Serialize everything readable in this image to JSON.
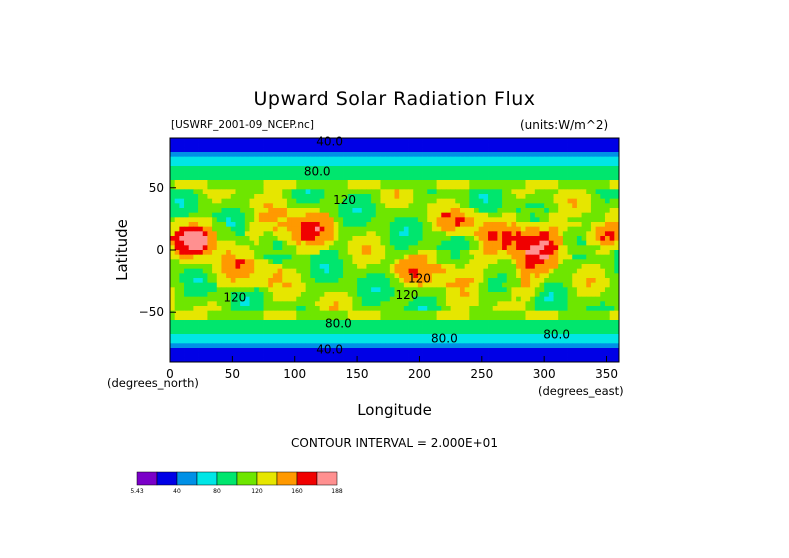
{
  "chart_data": {
    "type": "heatmap",
    "title": "Upward Solar Radiation Flux",
    "source_file": "[USWRF_2001-09_NCEP.nc]",
    "units": "(units:W/m^2)",
    "xlabel": "Longitude",
    "ylabel": "Latitude",
    "x_unit": "(degrees_east)",
    "y_unit": "(degrees_north)",
    "xlim": [
      0,
      360
    ],
    "ylim": [
      -90,
      90
    ],
    "x_ticks": [
      0,
      50,
      100,
      150,
      200,
      250,
      300,
      350
    ],
    "y_ticks": [
      -50,
      0,
      50
    ],
    "y_tick_labels": [
      "−50",
      "0",
      "50"
    ],
    "contour_interval": "CONTOUR INTERVAL = 2.000E+01",
    "contour_labels": [
      {
        "text": "40.0",
        "x": 128,
        "y": 87
      },
      {
        "text": "80.0",
        "x": 118,
        "y": 63
      },
      {
        "text": "120",
        "x": 140,
        "y": 40
      },
      {
        "text": "120",
        "x": 52,
        "y": -38
      },
      {
        "text": "120",
        "x": 200,
        "y": -23
      },
      {
        "text": "120",
        "x": 190,
        "y": -36
      },
      {
        "text": "80.0",
        "x": 135,
        "y": -59
      },
      {
        "text": "80.0",
        "x": 220,
        "y": -71
      },
      {
        "text": "80.0",
        "x": 310,
        "y": -68
      },
      {
        "text": "40.0",
        "x": 128,
        "y": -80
      }
    ],
    "colorbar": {
      "colors": [
        "#7a00c8",
        "#0000e6",
        "#0090e6",
        "#00e6e6",
        "#00e66e",
        "#6ee600",
        "#e6e600",
        "#ff9900",
        "#f00000",
        "#ff9090"
      ],
      "labels": [
        "5.43",
        "40",
        "80",
        "120",
        "160",
        "188"
      ],
      "label_positions": [
        0,
        2,
        4,
        6,
        8,
        10
      ]
    }
  }
}
